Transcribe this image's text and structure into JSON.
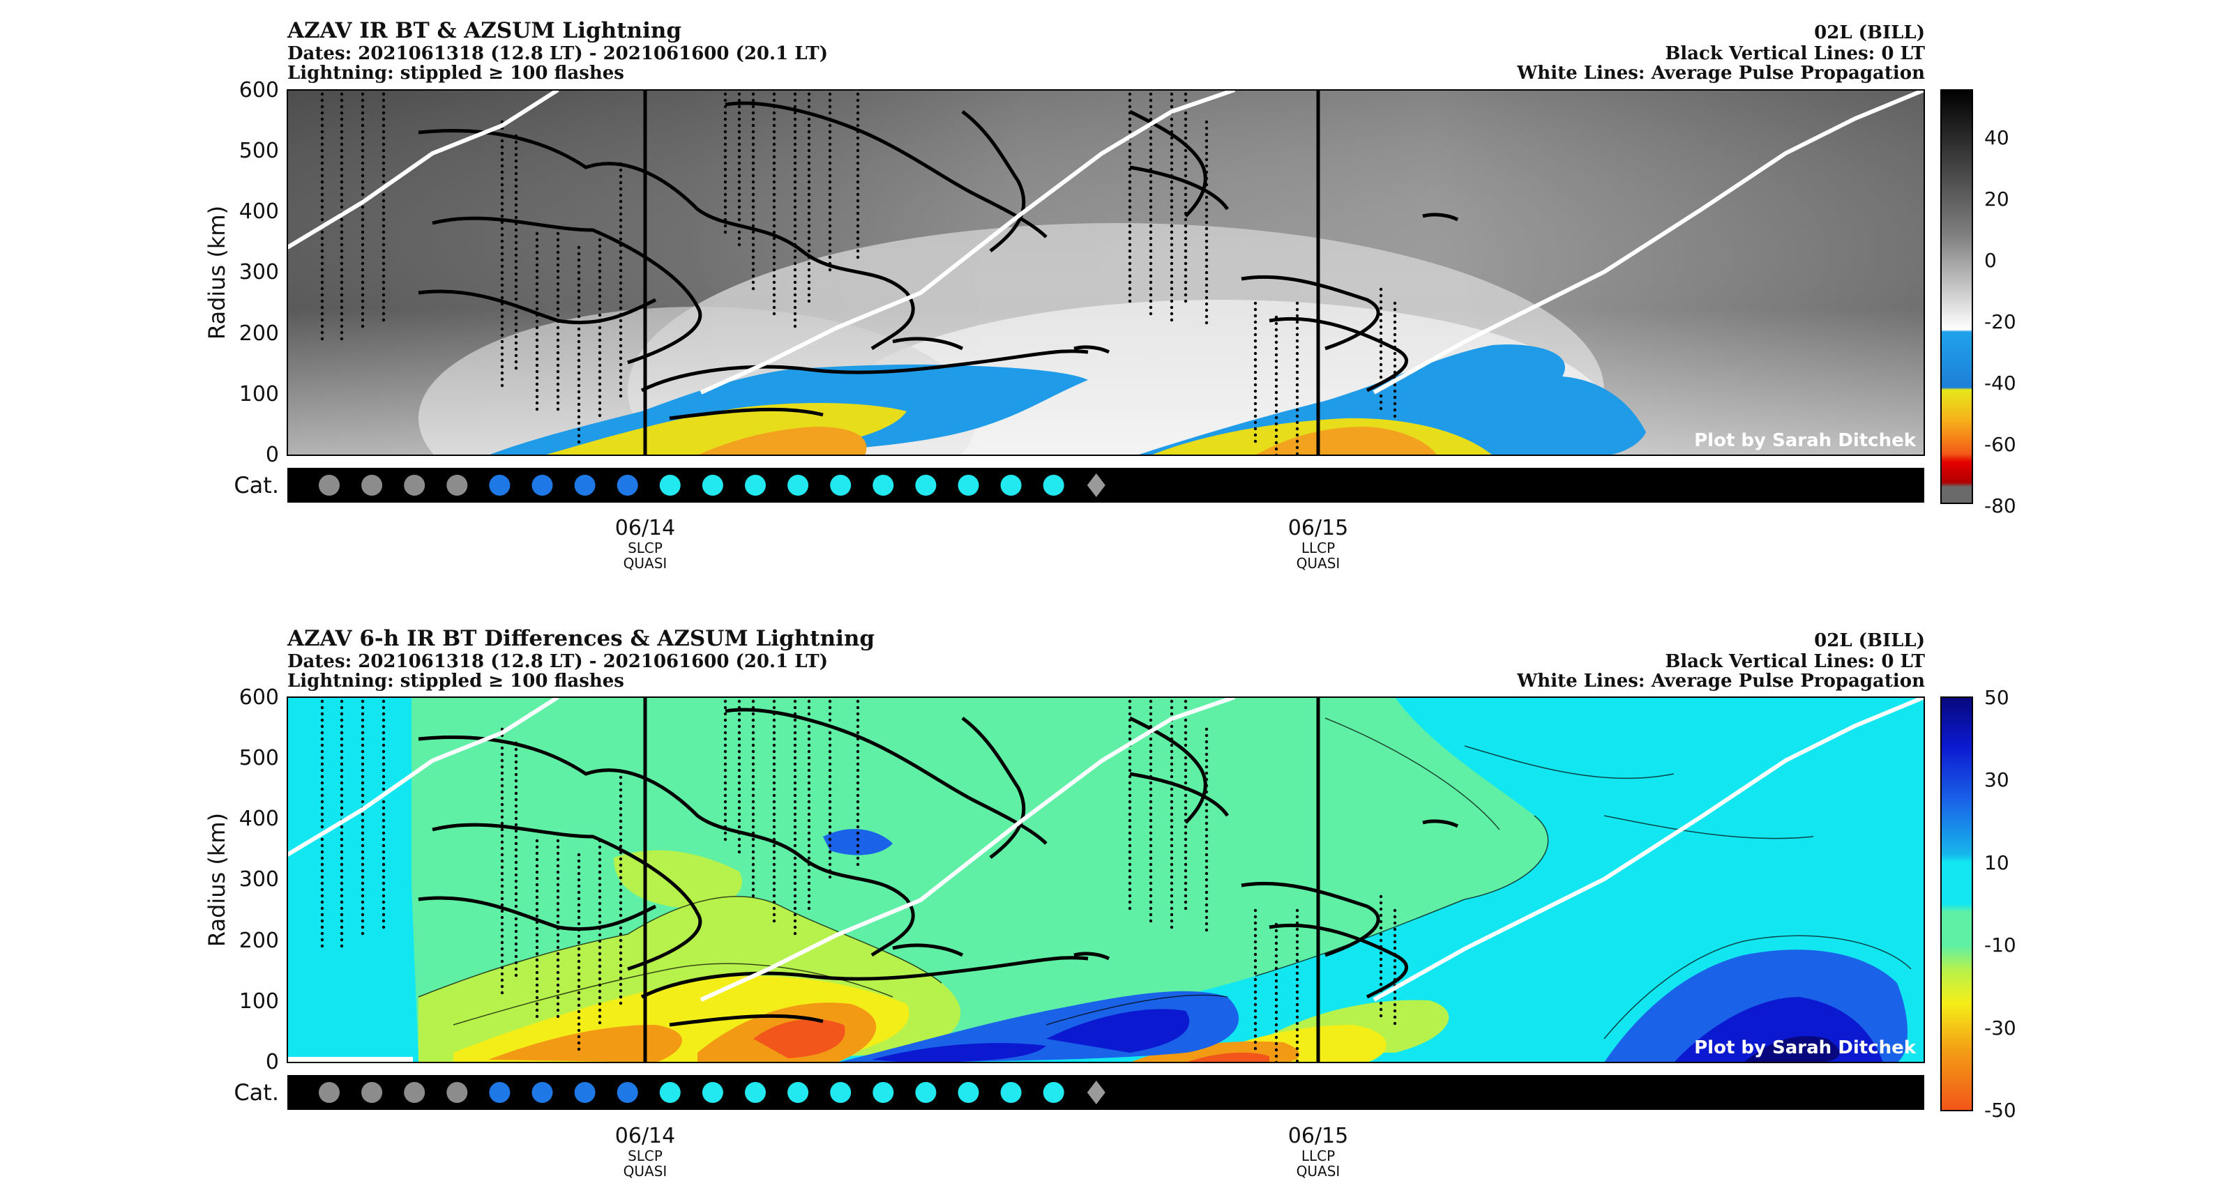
{
  "chart_data": [
    {
      "type": "heatmap",
      "title": "AZAV IR BT & AZSUM Lightning",
      "subtitle_dates": "Dates: 2021061318 (12.8 LT) - 2021061600 (20.1 LT)",
      "subtitle_lightning": "Lightning: stippled ≥ 100 flashes",
      "storm": "02L (BILL)",
      "note_black": "Black Vertical Lines: 0 LT",
      "note_white": "White Lines: Average Pulse Propagation",
      "ylabel": "Radius (km)",
      "ylim": [
        0,
        600
      ],
      "yticks": [
        "0",
        "100",
        "200",
        "300",
        "400",
        "500",
        "600"
      ],
      "cat_label": "Cat.",
      "credit": "Plot by Sarah Ditchek",
      "colorbar_ticks": [
        "40",
        "20",
        "0",
        "-20",
        "-40",
        "-60",
        "-80"
      ],
      "colorbar_range": [
        -80,
        55
      ],
      "xticks": [
        {
          "label": "06/14",
          "sub1": "SLCP",
          "sub2": "QUASI"
        },
        {
          "label": "06/15",
          "sub1": "LLCP",
          "sub2": "QUASI"
        }
      ]
    },
    {
      "type": "heatmap",
      "title": "AZAV 6-h IR BT Differences & AZSUM Lightning",
      "subtitle_dates": "Dates: 2021061318 (12.8 LT) - 2021061600 (20.1 LT)",
      "subtitle_lightning": "Lightning: stippled ≥ 100 flashes",
      "storm": "02L (BILL)",
      "note_black": "Black Vertical Lines: 0 LT",
      "note_white": "White Lines: Average Pulse Propagation",
      "ylabel": "Radius (km)",
      "ylim": [
        0,
        600
      ],
      "yticks": [
        "0",
        "100",
        "200",
        "300",
        "400",
        "500",
        "600"
      ],
      "cat_label": "Cat.",
      "credit": "Plot by Sarah Ditchek",
      "colorbar_ticks": [
        "50",
        "30",
        "10",
        "-10",
        "-30",
        "-50"
      ],
      "colorbar_range": [
        -50,
        50
      ],
      "xticks": [
        {
          "label": "06/14",
          "sub1": "SLCP",
          "sub2": "QUASI"
        },
        {
          "label": "06/15",
          "sub1": "LLCP",
          "sub2": "QUASI"
        }
      ]
    }
  ],
  "categories_row": {
    "markers": [
      "td",
      "td",
      "td",
      "td",
      "ts",
      "ts",
      "ts",
      "ts",
      "ex",
      "ex",
      "ex",
      "ex",
      "ex",
      "ex",
      "ex",
      "ex",
      "ex",
      "ex",
      "pt"
    ],
    "colors": {
      "td": "#8c8c8c",
      "ts": "#1e78e6",
      "ex": "#22e8f0",
      "pt": "#9a9a9a"
    }
  },
  "colors": {
    "bt_gray_dark": "#3c3c3c",
    "bt_gray_mid": "#8a8a8a",
    "bt_gray_light": "#d8d8d8",
    "bt_blue": "#1f9be8",
    "bt_yellow": "#e7dd1a",
    "bt_orange": "#f2a21f",
    "diff_cyan": "#12e7f1",
    "diff_green": "#5ff0a6",
    "diff_lime": "#b7f14b",
    "diff_yellow": "#f4ee18",
    "diff_orange": "#f39a15",
    "diff_red": "#f2561a",
    "diff_blue": "#1a63e8",
    "diff_navy": "#0b0cb4"
  }
}
